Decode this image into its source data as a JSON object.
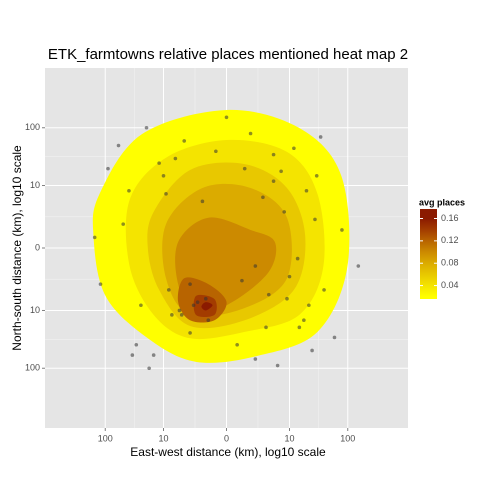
{
  "chart_data": {
    "type": "density_contour",
    "title": "ETK_farmtowns relative places mentioned heat map 2",
    "x_label": "East-west distance (km), log10 scale",
    "y_label": "North-south distance (km), log10 scale",
    "scale": "symlog",
    "grid": true,
    "xlim": [
      -1000,
      1000
    ],
    "ylim": [
      -1000,
      1000
    ],
    "xticks": [
      {
        "value": -100,
        "label": "100"
      },
      {
        "value": -10,
        "label": "10"
      },
      0,
      10,
      100
    ],
    "yticks": [
      {
        "value": -100,
        "label": "100"
      },
      {
        "value": -10,
        "label": "10"
      },
      0,
      10,
      100
    ],
    "contours": [
      {
        "level": 0.02,
        "color": "#ffff00",
        "x": [
          -125,
          -24,
          0,
          15,
          78,
          99,
          31,
          2.2,
          -2.2,
          -19,
          -99,
          -157
        ],
        "y": [
          6.9,
          78,
          199,
          99,
          15,
          -1.0,
          -24,
          -62,
          -78,
          -31,
          -5.3,
          0.58
        ]
      },
      {
        "level": 0.04,
        "color": "#f4e400",
        "x": [
          -39,
          -9,
          0,
          9,
          31,
          39,
          15,
          1,
          -3,
          -15,
          -39
        ],
        "y": [
          5.3,
          31,
          62,
          39,
          6.9,
          -1,
          -12,
          -24,
          -31,
          -12,
          -1
        ]
      },
      {
        "level": 0.06,
        "color": "#e8c800",
        "x": [
          -15,
          -3,
          1,
          9,
          19,
          12,
          1,
          -3,
          -12,
          -19
        ],
        "y": [
          3,
          19,
          24,
          9,
          0.58,
          -4,
          -15,
          -19,
          -4,
          0
        ]
      },
      {
        "level": 0.08,
        "color": "#dbab00",
        "x": [
          -9,
          -1.5,
          1.5,
          9,
          9,
          1,
          -3,
          -9
        ],
        "y": [
          1.5,
          9,
          9,
          2.2,
          -2.2,
          -9,
          -12,
          -2.2
        ]
      },
      {
        "level": 0.1,
        "color": "#cc8a00",
        "x": [
          -5.3,
          -1,
          1.5,
          5.3,
          4,
          0.26,
          -2.2,
          -5.3
        ],
        "y": [
          0.26,
          2.2,
          1,
          0.26,
          -1.5,
          -6.9,
          -12,
          -3
        ]
      },
      {
        "level": 0.12,
        "color": "#b86400",
        "x": [
          -4,
          -1,
          0,
          -0.58,
          -3,
          -5.3
        ],
        "y": [
          -2.2,
          -3,
          -6.9,
          -15,
          -15,
          -6.9
        ]
      },
      {
        "level": 0.14,
        "color": "#a33c00",
        "x": [
          -2.2,
          -0.58,
          -0.58,
          -2.2
        ],
        "y": [
          -5.3,
          -6.1,
          -12,
          -12
        ]
      },
      {
        "level": 0.16,
        "color": "#8b1a00",
        "x": [
          -1.2,
          -0.7,
          -1.2,
          -1.6
        ],
        "y": [
          -7,
          -8,
          -10,
          -8.5
        ]
      }
    ],
    "points": {
      "color": "#333333",
      "x": [
        -120,
        -90,
        -60,
        -40,
        -30,
        -20,
        -15,
        -10,
        -8,
        -6,
        -5,
        -4,
        -3,
        -2,
        -1.5,
        -1,
        -0.5,
        0,
        0.5,
        1,
        2,
        3,
        4,
        5,
        6,
        8,
        10,
        12,
        15,
        20,
        25,
        30,
        40,
        60,
        80,
        150,
        -150,
        -25,
        -12,
        -7,
        -3,
        2,
        5,
        9,
        18,
        35,
        -50,
        -18,
        -9,
        -2.5,
        3.5,
        7,
        14,
        28,
        -35,
        -4.5,
        1.5,
        -1.2,
        0.8,
        22
      ],
      "y": [
        -3,
        20,
        50,
        8,
        -40,
        100,
        -60,
        15,
        -4,
        30,
        -10,
        60,
        -25,
        -7,
        5,
        -15,
        40,
        150,
        -40,
        20,
        -70,
        6,
        -5,
        12,
        -90,
        3,
        -2,
        45,
        -20,
        8,
        -50,
        15,
        -4,
        -30,
        1,
        -1,
        0.5,
        -8,
        25,
        -12,
        -3,
        -1,
        35,
        -6,
        -15,
        70,
        1.5,
        -100,
        7,
        -8,
        -20,
        18,
        -0.5,
        2,
        -60,
        -12,
        80,
        -6,
        -2.5,
        -8
      ]
    },
    "legend": {
      "title": "avg places",
      "lim": [
        0.016,
        0.177
      ],
      "ticks": [
        0.04,
        0.08,
        0.12,
        0.16
      ]
    }
  }
}
